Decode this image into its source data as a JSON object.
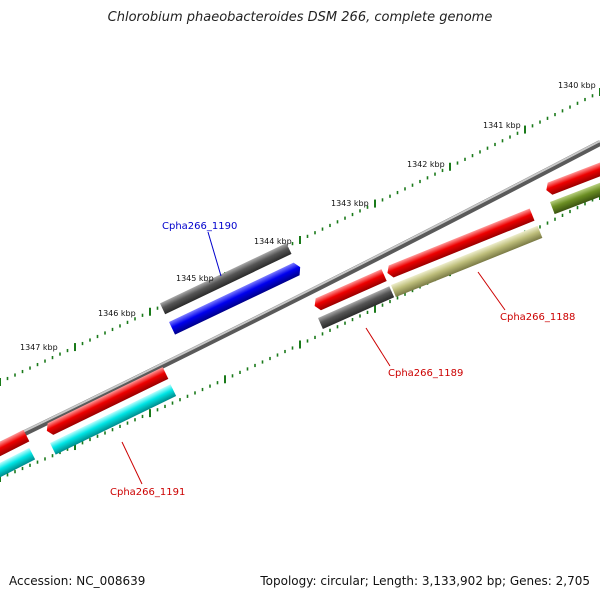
{
  "title": "Chlorobium phaeobacteroides DSM 266, complete genome",
  "footer": {
    "accession": "Accession: NC_008639",
    "topology": "Topology: circular; Length: 3,133,902 bp; Genes: 2,705"
  },
  "colors": {
    "backbone": "#8c8c8c",
    "tick": "#1a7a1a",
    "gene_label_red": "#cc0000",
    "gene_label_blue": "#0000cc"
  },
  "scale_ticks": [
    {
      "label": "1340 kbp",
      "kbp": 1340
    },
    {
      "label": "1341 kbp",
      "kbp": 1341
    },
    {
      "label": "1342 kbp",
      "kbp": 1342
    },
    {
      "label": "1343 kbp",
      "kbp": 1343
    },
    {
      "label": "1344 kbp",
      "kbp": 1344
    },
    {
      "label": "1345 kbp",
      "kbp": 1345
    },
    {
      "label": "1346 kbp",
      "kbp": 1346
    },
    {
      "label": "1347 kbp",
      "kbp": 1347
    }
  ],
  "gene_labels": [
    {
      "name": "Cpha266_1188",
      "color": "#cc0000"
    },
    {
      "name": "Cpha266_1189",
      "color": "#cc0000"
    },
    {
      "name": "Cpha266_1190",
      "color": "#0000cc"
    },
    {
      "name": "Cpha266_1191",
      "color": "#cc0000"
    }
  ],
  "features": [
    {
      "track": "outer-upper",
      "color": "#555555"
    },
    {
      "track": "outer-lower",
      "color": "#0000ee"
    },
    {
      "track": "cds",
      "color": "#ee0000"
    },
    {
      "track": "gene",
      "color": "#555555"
    },
    {
      "track": "gene",
      "color": "#bdbd7a"
    },
    {
      "track": "gene",
      "color": "#00e5e5"
    },
    {
      "track": "gene",
      "color": "#6b8e23"
    }
  ]
}
